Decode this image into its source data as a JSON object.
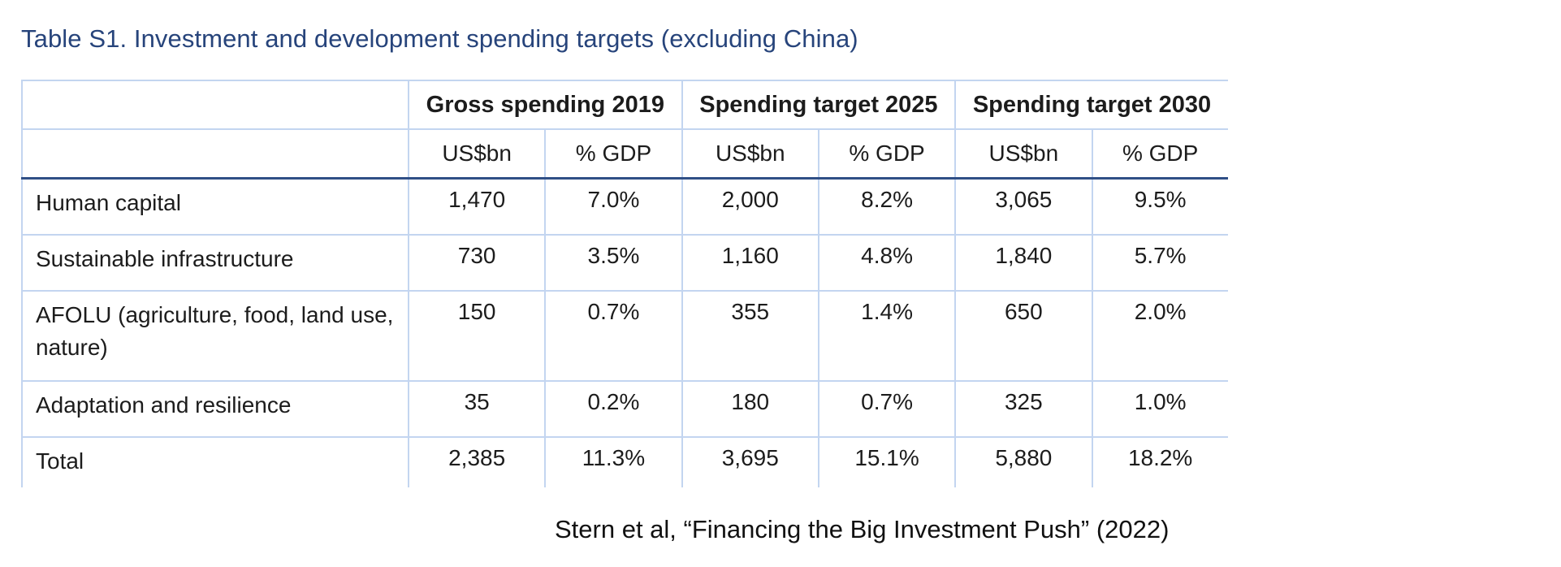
{
  "title": "Table S1. Investment and development spending targets (excluding China)",
  "column_groups": [
    "Gross spending 2019",
    "Spending target 2025",
    "Spending target 2030"
  ],
  "sub_headers": [
    "US$bn",
    "% GDP",
    "US$bn",
    "% GDP",
    "US$bn",
    "% GDP"
  ],
  "rows": [
    {
      "label": "Human capital",
      "values": [
        "1,470",
        "7.0%",
        "2,000",
        "8.2%",
        "3,065",
        "9.5%"
      ]
    },
    {
      "label": "Sustainable infrastructure",
      "values": [
        "730",
        "3.5%",
        "1,160",
        "4.8%",
        "1,840",
        "5.7%"
      ]
    },
    {
      "label": "AFOLU (agriculture, food, land use, nature)",
      "values": [
        "150",
        "0.7%",
        "355",
        "1.4%",
        "650",
        "2.0%"
      ]
    },
    {
      "label": "Adaptation and resilience",
      "values": [
        "35",
        "0.2%",
        "180",
        "0.7%",
        "325",
        "1.0%"
      ]
    },
    {
      "label": "Total",
      "values": [
        "2,385",
        "11.3%",
        "3,695",
        "15.1%",
        "5,880",
        "18.2%"
      ]
    }
  ],
  "source": "Stern et al, “Financing the Big Investment Push” (2022)"
}
